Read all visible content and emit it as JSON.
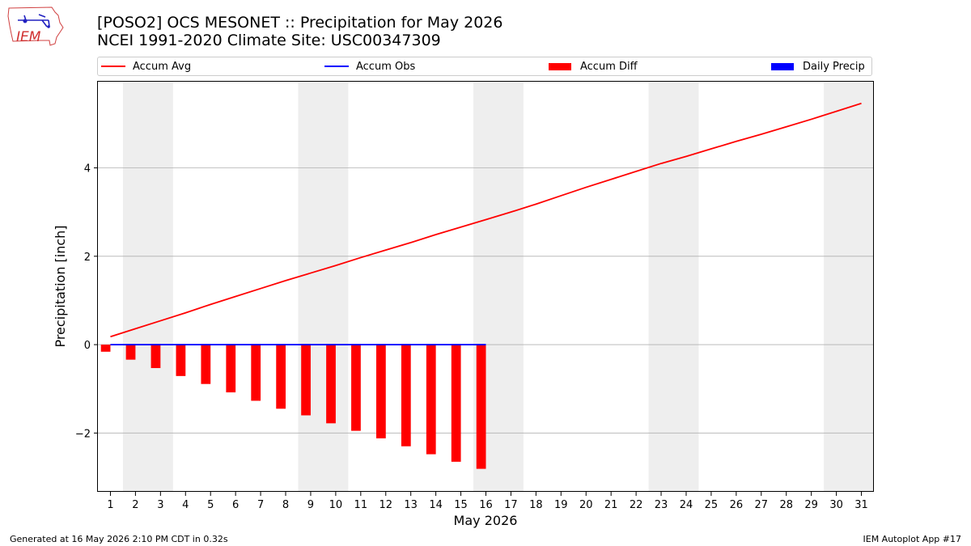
{
  "title": {
    "line1": "[POSO2] OCS MESONET :: Precipitation for May 2026",
    "line2": "NCEI 1991-2020 Climate Site: USC00347309"
  },
  "logo": {
    "text": "IEM",
    "icon": "iem-iowa-map-logo"
  },
  "footer": {
    "left": "Generated at 16 May 2026 2:10 PM CDT in 0.32s",
    "right": "IEM Autoplot App #17"
  },
  "colors": {
    "accum_avg": "#ff0000",
    "accum_obs": "#0000ff",
    "accum_diff": "#ff0000",
    "daily_precip": "#0000ff",
    "weekend_shade": "#eeeeee",
    "grid": "#b0b0b0"
  },
  "chart_data": {
    "type": "line",
    "title": "[POSO2] OCS MESONET :: Precipitation for May 2026",
    "subtitle": "NCEI 1991-2020 Climate Site: USC00347309",
    "xlabel": "May 2026",
    "ylabel": "Precipitation [inch]",
    "xlim": [
      0.5,
      31.5
    ],
    "ylim": [
      -3.33,
      5.95
    ],
    "yticks": [
      -2,
      0,
      2,
      4
    ],
    "grid": "horizontal",
    "legend_position": "top",
    "x_tick_labels": [
      "1",
      "2",
      "3",
      "4",
      "5",
      "6",
      "7",
      "8",
      "9",
      "10",
      "11",
      "12",
      "13",
      "14",
      "15",
      "16",
      "17",
      "18",
      "19",
      "20",
      "21",
      "22",
      "23",
      "24",
      "25",
      "26",
      "27",
      "28",
      "29",
      "30",
      "31"
    ],
    "weekend_shading": [
      [
        2,
        3
      ],
      [
        9,
        10
      ],
      [
        16,
        17
      ],
      [
        23,
        24
      ],
      [
        30,
        31
      ]
    ],
    "series": [
      {
        "name": "Accum Avg",
        "kind": "line",
        "x": [
          1,
          2,
          3,
          4,
          5,
          6,
          7,
          8,
          9,
          10,
          11,
          12,
          13,
          14,
          15,
          16,
          17,
          18,
          19,
          20,
          21,
          22,
          23,
          24,
          25,
          26,
          27,
          28,
          29,
          30,
          31
        ],
        "values": [
          0.18,
          0.36,
          0.54,
          0.72,
          0.91,
          1.09,
          1.27,
          1.45,
          1.62,
          1.79,
          1.97,
          2.14,
          2.31,
          2.49,
          2.66,
          2.83,
          3.0,
          3.18,
          3.37,
          3.56,
          3.74,
          3.92,
          4.1,
          4.26,
          4.43,
          4.6,
          4.76,
          4.93,
          5.1,
          5.28,
          5.46
        ]
      },
      {
        "name": "Accum Obs",
        "kind": "line",
        "x": [
          1,
          2,
          3,
          4,
          5,
          6,
          7,
          8,
          9,
          10,
          11,
          12,
          13,
          14,
          15,
          16
        ],
        "values": [
          0,
          0,
          0,
          0,
          0,
          0,
          0,
          0,
          0,
          0,
          0,
          0,
          0,
          0,
          0,
          0
        ]
      },
      {
        "name": "Accum Diff",
        "kind": "bar",
        "x": [
          1,
          2,
          3,
          4,
          5,
          6,
          7,
          8,
          9,
          10,
          11,
          12,
          13,
          14,
          15,
          16
        ],
        "values": [
          -0.16,
          -0.34,
          -0.53,
          -0.71,
          -0.89,
          -1.08,
          -1.27,
          -1.45,
          -1.6,
          -1.78,
          -1.95,
          -2.12,
          -2.3,
          -2.48,
          -2.65,
          -2.81
        ]
      },
      {
        "name": "Daily Precip",
        "kind": "bar",
        "x": [
          1,
          2,
          3,
          4,
          5,
          6,
          7,
          8,
          9,
          10,
          11,
          12,
          13,
          14,
          15,
          16
        ],
        "values": [
          0,
          0,
          0,
          0,
          0,
          0,
          0,
          0,
          0,
          0,
          0,
          0,
          0,
          0,
          0,
          0
        ]
      }
    ]
  }
}
